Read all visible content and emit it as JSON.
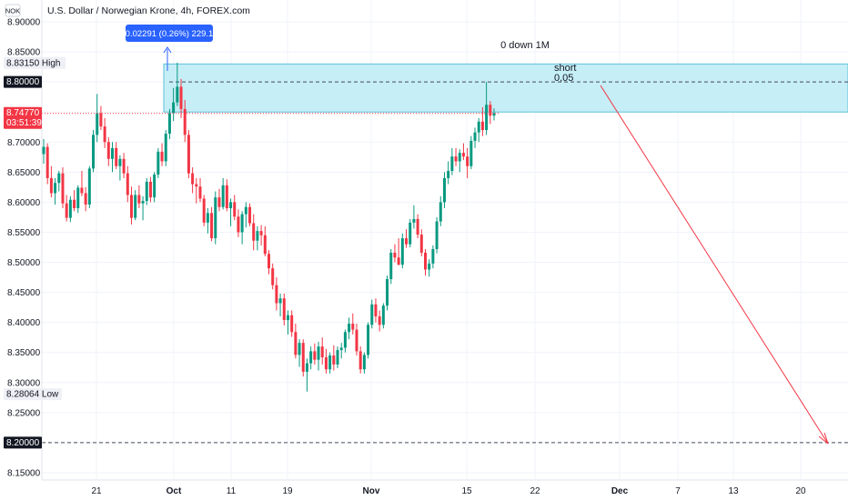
{
  "chart_data": {
    "type": "candlestick",
    "symbol_badge": "NOK",
    "title": "U.S. Dollar / Norwegian Krone, 4h, FOREX.com",
    "y_axis": {
      "position": "left",
      "range": [
        8.135,
        8.905
      ],
      "ticks": [
        "8.90000",
        "8.85000",
        "8.80000",
        "8.75000",
        "8.70000",
        "8.65000",
        "8.60000",
        "8.55000",
        "8.50000",
        "8.45000",
        "8.40000",
        "8.35000",
        "8.30000",
        "8.25000",
        "8.20000",
        "8.15000"
      ]
    },
    "x_axis": {
      "ticks": [
        {
          "label": "21",
          "bold": false
        },
        {
          "label": "Oct",
          "bold": true
        },
        {
          "label": "11",
          "bold": false
        },
        {
          "label": "19",
          "bold": false
        },
        {
          "label": "Nov",
          "bold": true
        },
        {
          "label": "15",
          "bold": false
        },
        {
          "label": "22",
          "bold": false
        },
        {
          "label": "Dec",
          "bold": true
        },
        {
          "label": "7",
          "bold": false
        },
        {
          "label": "13",
          "bold": false
        },
        {
          "label": "20",
          "bold": false
        }
      ]
    },
    "price_labels": {
      "high": {
        "value": "8.83150",
        "label": "High"
      },
      "low": {
        "value": "8.28064",
        "label": "Low"
      },
      "level_top": {
        "value": "8.80000"
      },
      "current": {
        "value": "8.74770",
        "countdown": "03:51:39"
      },
      "level_bottom": {
        "value": "8.20000"
      }
    },
    "measure_tooltip": "0.02291 (0.26%) 229.1",
    "annotations": {
      "main_note": "0 down 1M",
      "short_label": "short",
      "short_value": "0,05"
    },
    "levels": {
      "zone_top": 8.8299,
      "zone_bottom": 8.75,
      "dashed_level": 8.8,
      "current_price": 8.7477,
      "target_level": 8.2
    },
    "candles_ohlc": [
      [
        8.68,
        8.705,
        8.664,
        8.692
      ],
      [
        8.692,
        8.698,
        8.63,
        8.64
      ],
      [
        8.64,
        8.66,
        8.608,
        8.615
      ],
      [
        8.615,
        8.64,
        8.596,
        8.632
      ],
      [
        8.632,
        8.652,
        8.618,
        8.648
      ],
      [
        8.648,
        8.658,
        8.59,
        8.598
      ],
      [
        8.598,
        8.612,
        8.568,
        8.574
      ],
      [
        8.574,
        8.61,
        8.567,
        8.604
      ],
      [
        8.604,
        8.62,
        8.585,
        8.59
      ],
      [
        8.59,
        8.628,
        8.582,
        8.624
      ],
      [
        8.624,
        8.652,
        8.61,
        8.615
      ],
      [
        8.615,
        8.625,
        8.585,
        8.596
      ],
      [
        8.596,
        8.66,
        8.59,
        8.656
      ],
      [
        8.656,
        8.72,
        8.65,
        8.712
      ],
      [
        8.712,
        8.78,
        8.7,
        8.748
      ],
      [
        8.748,
        8.76,
        8.72,
        8.726
      ],
      [
        8.726,
        8.74,
        8.69,
        8.7
      ],
      [
        8.7,
        8.708,
        8.66,
        8.672
      ],
      [
        8.672,
        8.7,
        8.65,
        8.69
      ],
      [
        8.69,
        8.7,
        8.655,
        8.66
      ],
      [
        8.66,
        8.678,
        8.636,
        8.672
      ],
      [
        8.672,
        8.682,
        8.64,
        8.648
      ],
      [
        8.648,
        8.66,
        8.6,
        8.612
      ],
      [
        8.612,
        8.626,
        8.563,
        8.574
      ],
      [
        8.574,
        8.62,
        8.57,
        8.612
      ],
      [
        8.612,
        8.628,
        8.59,
        8.598
      ],
      [
        8.598,
        8.61,
        8.57,
        8.602
      ],
      [
        8.602,
        8.64,
        8.595,
        8.634
      ],
      [
        8.634,
        8.642,
        8.6,
        8.608
      ],
      [
        8.608,
        8.65,
        8.6,
        8.646
      ],
      [
        8.646,
        8.69,
        8.64,
        8.684
      ],
      [
        8.684,
        8.698,
        8.66,
        8.668
      ],
      [
        8.668,
        8.72,
        8.66,
        8.714
      ],
      [
        8.714,
        8.755,
        8.705,
        8.748
      ],
      [
        8.748,
        8.79,
        8.735,
        8.766
      ],
      [
        8.766,
        8.832,
        8.76,
        8.792
      ],
      [
        8.792,
        8.805,
        8.74,
        8.755
      ],
      [
        8.755,
        8.77,
        8.7,
        8.712
      ],
      [
        8.712,
        8.72,
        8.64,
        8.648
      ],
      [
        8.648,
        8.658,
        8.615,
        8.63
      ],
      [
        8.63,
        8.64,
        8.598,
        8.626
      ],
      [
        8.626,
        8.64,
        8.6,
        8.606
      ],
      [
        8.606,
        8.612,
        8.56,
        8.566
      ],
      [
        8.566,
        8.59,
        8.548,
        8.582
      ],
      [
        8.582,
        8.592,
        8.535,
        8.54
      ],
      [
        8.54,
        8.618,
        8.53,
        8.608
      ],
      [
        8.608,
        8.622,
        8.585,
        8.592
      ],
      [
        8.592,
        8.64,
        8.588,
        8.628
      ],
      [
        8.628,
        8.638,
        8.585,
        8.59
      ],
      [
        8.59,
        8.606,
        8.56,
        8.6
      ],
      [
        8.6,
        8.612,
        8.57,
        8.576
      ],
      [
        8.576,
        8.588,
        8.542,
        8.55
      ],
      [
        8.55,
        8.585,
        8.53,
        8.58
      ],
      [
        8.58,
        8.6,
        8.558,
        8.592
      ],
      [
        8.592,
        8.598,
        8.56,
        8.565
      ],
      [
        8.565,
        8.58,
        8.52,
        8.536
      ],
      [
        8.536,
        8.56,
        8.52,
        8.552
      ],
      [
        8.552,
        8.562,
        8.528,
        8.545
      ],
      [
        8.545,
        8.56,
        8.51,
        8.514
      ],
      [
        8.514,
        8.52,
        8.48,
        8.49
      ],
      [
        8.49,
        8.498,
        8.455,
        8.462
      ],
      [
        8.462,
        8.475,
        8.42,
        8.432
      ],
      [
        8.432,
        8.448,
        8.41,
        8.44
      ],
      [
        8.44,
        8.448,
        8.395,
        8.404
      ],
      [
        8.404,
        8.42,
        8.38,
        8.412
      ],
      [
        8.412,
        8.42,
        8.376,
        8.384
      ],
      [
        8.384,
        8.398,
        8.34,
        8.346
      ],
      [
        8.346,
        8.372,
        8.326,
        8.366
      ],
      [
        8.366,
        8.372,
        8.31,
        8.318
      ],
      [
        8.318,
        8.34,
        8.285,
        8.332
      ],
      [
        8.332,
        8.36,
        8.322,
        8.352
      ],
      [
        8.352,
        8.365,
        8.33,
        8.338
      ],
      [
        8.338,
        8.368,
        8.32,
        8.36
      ],
      [
        8.36,
        8.375,
        8.33,
        8.342
      ],
      [
        8.342,
        8.356,
        8.315,
        8.322
      ],
      [
        8.322,
        8.35,
        8.315,
        8.345
      ],
      [
        8.345,
        8.362,
        8.32,
        8.33
      ],
      [
        8.33,
        8.36,
        8.324,
        8.354
      ],
      [
        8.354,
        8.366,
        8.34,
        8.358
      ],
      [
        8.358,
        8.388,
        8.35,
        8.384
      ],
      [
        8.384,
        8.408,
        8.372,
        8.398
      ],
      [
        8.398,
        8.415,
        8.38,
        8.388
      ],
      [
        8.388,
        8.398,
        8.345,
        8.352
      ],
      [
        8.352,
        8.36,
        8.315,
        8.322
      ],
      [
        8.322,
        8.35,
        8.315,
        8.346
      ],
      [
        8.346,
        8.4,
        8.34,
        8.396
      ],
      [
        8.396,
        8.438,
        8.39,
        8.43
      ],
      [
        8.43,
        8.44,
        8.4,
        8.41
      ],
      [
        8.41,
        8.42,
        8.385,
        8.396
      ],
      [
        8.396,
        8.432,
        8.39,
        8.428
      ],
      [
        8.428,
        8.478,
        8.42,
        8.472
      ],
      [
        8.472,
        8.522,
        8.464,
        8.516
      ],
      [
        8.516,
        8.53,
        8.5,
        8.508
      ],
      [
        8.508,
        8.54,
        8.495,
        8.496
      ],
      [
        8.496,
        8.548,
        8.49,
        8.54
      ],
      [
        8.54,
        8.555,
        8.524,
        8.53
      ],
      [
        8.53,
        8.572,
        8.525,
        8.566
      ],
      [
        8.566,
        8.595,
        8.556,
        8.572
      ],
      [
        8.572,
        8.58,
        8.54,
        8.546
      ],
      [
        8.546,
        8.555,
        8.51,
        8.516
      ],
      [
        8.516,
        8.522,
        8.478,
        8.488
      ],
      [
        8.488,
        8.505,
        8.476,
        8.498
      ],
      [
        8.498,
        8.528,
        8.49,
        8.522
      ],
      [
        8.522,
        8.575,
        8.515,
        8.568
      ],
      [
        8.568,
        8.61,
        8.56,
        8.6
      ],
      [
        8.6,
        8.65,
        8.59,
        8.64
      ],
      [
        8.64,
        8.668,
        8.63,
        8.652
      ],
      [
        8.652,
        8.69,
        8.645,
        8.676
      ],
      [
        8.676,
        8.69,
        8.66,
        8.668
      ],
      [
        8.668,
        8.688,
        8.65,
        8.682
      ],
      [
        8.682,
        8.698,
        8.67,
        8.676
      ],
      [
        8.676,
        8.69,
        8.64,
        8.66
      ],
      [
        8.66,
        8.71,
        8.655,
        8.702
      ],
      [
        8.702,
        8.724,
        8.69,
        8.716
      ],
      [
        8.716,
        8.74,
        8.7,
        8.734
      ],
      [
        8.734,
        8.758,
        8.71,
        8.72
      ],
      [
        8.72,
        8.8,
        8.712,
        8.762
      ],
      [
        8.762,
        8.768,
        8.73,
        8.744
      ],
      [
        8.744,
        8.756,
        8.736,
        8.748
      ]
    ]
  }
}
